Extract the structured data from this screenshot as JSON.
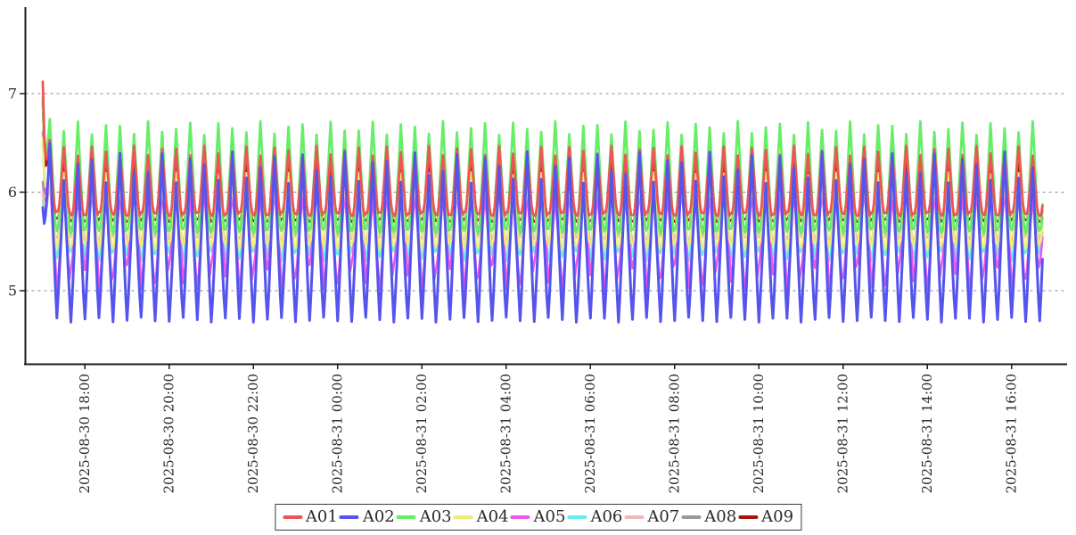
{
  "chart": {
    "background": "#ffffff",
    "axis_color": "#1a1a1a",
    "grid_color": "#8a8a8a",
    "text_color": "#2b2b2b",
    "legend_border_color": "#3a3a3a"
  },
  "chart_data": {
    "type": "line",
    "title": "",
    "xlabel": "",
    "ylabel": "",
    "x_axis": {
      "kind": "time",
      "start": "2025-08-30 17:00",
      "end": "2025-08-31 17:00",
      "tick_interval_hours": 2,
      "tick_labels": [
        "2025-08-30 18:00",
        "2025-08-30 20:00",
        "2025-08-30 22:00",
        "2025-08-31 00:00",
        "2025-08-31 02:00",
        "2025-08-31 04:00",
        "2025-08-31 06:00",
        "2025-08-31 08:00",
        "2025-08-31 10:00",
        "2025-08-31 12:00",
        "2025-08-31 14:00",
        "2025-08-31 16:00"
      ]
    },
    "y_axis": {
      "tick_values": [
        5,
        6,
        7
      ],
      "tick_labels": [
        "5",
        "6",
        "7"
      ],
      "range": [
        4.26,
        7.86
      ],
      "grid": "dashed"
    },
    "legend": {
      "position": "bottom-center",
      "entries": [
        "A01",
        "A02",
        "A03",
        "A04",
        "A05",
        "A06",
        "A07",
        "A08",
        "A09"
      ]
    },
    "oscillation_period_minutes": 20,
    "sample_step_minutes": 2,
    "duration_minutes": 1425,
    "series": [
      {
        "name": "A01",
        "color": "#ee5555",
        "low": 5.76,
        "high": 6.42,
        "peak_jitter": 0.05,
        "trough_jitter": 0.04,
        "trough_flat": 0.3,
        "start_value": 7.1,
        "width": 2.8,
        "draw_order": 8
      },
      {
        "name": "A02",
        "color": "#5555ee",
        "low": 4.68,
        "high": 6.25,
        "peak_jitter": 0.16,
        "trough_jitter": 0.05,
        "trough_flat": 0.04,
        "start_value": 5.8,
        "width": 3.0,
        "draw_order": 9
      },
      {
        "name": "A03",
        "color": "#66ee66",
        "low": 5.58,
        "high": 6.65,
        "peak_jitter": 0.07,
        "trough_jitter": 0.05,
        "trough_flat": 0.18,
        "start_value": 6.92,
        "width": 2.8,
        "draw_order": 7
      },
      {
        "name": "A04",
        "color": "#eeee77",
        "low": 5.42,
        "high": 6.15,
        "peak_jitter": 0.05,
        "trough_jitter": 0.06,
        "trough_flat": 0.15,
        "start_value": 6.5,
        "width": 2.5,
        "draw_order": 6
      },
      {
        "name": "A05",
        "color": "#ee55ee",
        "low": 4.98,
        "high": 6.0,
        "peak_jitter": 0.05,
        "trough_jitter": 0.3,
        "trough_flat": 0.08,
        "start_value": 6.45,
        "width": 2.5,
        "draw_order": 4
      },
      {
        "name": "A06",
        "color": "#66eeee",
        "low": 5.3,
        "high": 6.02,
        "peak_jitter": 0.05,
        "trough_jitter": 0.1,
        "trough_flat": 0.1,
        "start_value": 5.9,
        "width": 2.5,
        "draw_order": 3
      },
      {
        "name": "A07",
        "color": "#f0b8b8",
        "low": 5.5,
        "high": 6.08,
        "peak_jitter": 0.04,
        "trough_jitter": 0.05,
        "trough_flat": 0.15,
        "start_value": 6.0,
        "width": 2.5,
        "draw_order": 5
      },
      {
        "name": "A08",
        "color": "#999999",
        "low": 5.62,
        "high": 6.1,
        "peak_jitter": 0.04,
        "trough_jitter": 0.03,
        "trough_flat": 0.2,
        "start_value": 6.1,
        "width": 2.5,
        "draw_order": 1
      },
      {
        "name": "A09",
        "color": "#aa1111",
        "low": 5.7,
        "high": 6.35,
        "peak_jitter": 0.04,
        "trough_jitter": 0.03,
        "trough_flat": 0.28,
        "start_value": 6.9,
        "width": 2.5,
        "draw_order": 2
      }
    ]
  }
}
